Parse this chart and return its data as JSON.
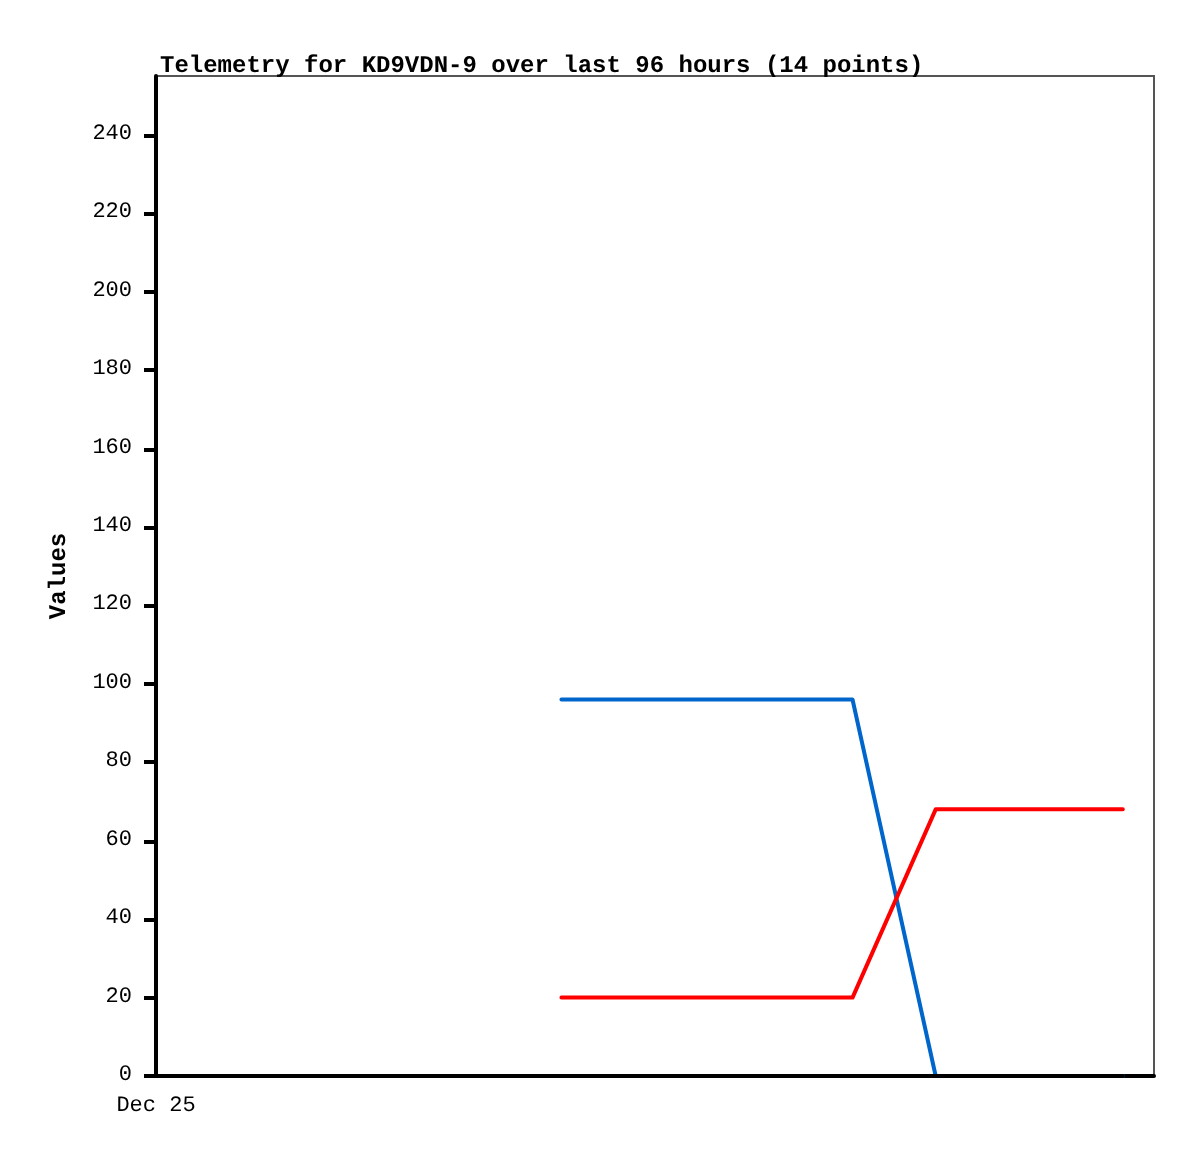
{
  "chart_data": {
    "type": "line",
    "title": "Telemetry for KD9VDN-9 over last 96 hours (14 points)",
    "ylabel": "Values",
    "categories": [
      "Dec 25",
      null,
      null,
      null,
      null,
      null,
      null,
      null,
      null,
      null,
      null,
      null,
      null,
      null,
      null,
      null,
      null,
      null,
      null,
      null,
      null,
      null,
      null,
      null,
      null,
      null,
      null,
      null,
      null,
      null,
      null,
      null,
      null,
      null,
      null,
      null,
      null,
      null,
      null,
      null,
      null,
      null,
      null,
      null,
      null,
      null,
      null,
      null,
      null,
      null,
      null,
      null,
      null,
      null,
      null,
      null,
      null,
      null,
      null,
      null,
      null,
      null,
      null,
      null,
      null,
      null,
      null,
      null,
      null,
      null,
      null,
      null,
      null,
      null,
      null,
      null,
      null,
      null,
      null,
      null,
      null,
      null,
      null,
      null,
      null,
      null,
      null,
      null,
      null,
      null,
      null,
      null,
      null,
      null,
      null,
      null,
      null
    ],
    "ylim": [
      0,
      255
    ],
    "yticks": [
      0,
      20,
      40,
      60,
      80,
      100,
      120,
      140,
      160,
      180,
      200,
      220,
      240
    ],
    "series": [
      {
        "color": "#0066cc",
        "values": [
          null,
          null,
          null,
          null,
          null,
          null,
          null,
          null,
          null,
          null,
          null,
          null,
          null,
          null,
          null,
          null,
          null,
          null,
          null,
          null,
          null,
          null,
          null,
          null,
          null,
          null,
          null,
          null,
          null,
          null,
          null,
          null,
          null,
          null,
          null,
          null,
          null,
          null,
          null,
          96,
          null,
          null,
          null,
          null,
          null,
          null,
          null,
          null,
          null,
          null,
          null,
          null,
          null,
          null,
          null,
          null,
          null,
          null,
          null,
          null,
          null,
          null,
          null,
          null,
          null,
          null,
          null,
          96,
          null,
          null,
          null,
          null,
          null,
          null,
          null,
          0,
          null,
          null,
          null,
          null,
          null,
          null,
          null,
          null,
          null,
          null,
          null,
          null,
          null,
          null,
          null,
          null,
          null,
          0,
          null,
          null,
          null
        ]
      },
      {
        "color": "#ff0000",
        "values": [
          null,
          null,
          null,
          null,
          null,
          null,
          null,
          null,
          null,
          null,
          null,
          null,
          null,
          null,
          null,
          null,
          null,
          null,
          null,
          null,
          null,
          null,
          null,
          null,
          null,
          null,
          null,
          null,
          null,
          null,
          null,
          null,
          null,
          null,
          null,
          null,
          null,
          null,
          null,
          20,
          null,
          null,
          null,
          null,
          null,
          null,
          null,
          null,
          null,
          null,
          null,
          null,
          null,
          null,
          null,
          null,
          null,
          null,
          null,
          null,
          null,
          null,
          null,
          null,
          null,
          null,
          null,
          20,
          null,
          null,
          null,
          null,
          null,
          null,
          null,
          68,
          null,
          null,
          null,
          null,
          null,
          null,
          null,
          null,
          null,
          null,
          null,
          null,
          null,
          null,
          null,
          null,
          null,
          68,
          null,
          null,
          null
        ]
      },
      {
        "color": "#000000",
        "values": [
          null,
          null,
          null,
          null,
          null,
          null,
          null,
          null,
          null,
          null,
          null,
          null,
          null,
          null,
          null,
          null,
          null,
          null,
          null,
          null,
          null,
          null,
          null,
          null,
          null,
          null,
          null,
          null,
          null,
          null,
          null,
          null,
          null,
          null,
          null,
          null,
          null,
          null,
          null,
          0,
          null,
          null,
          null,
          null,
          null,
          null,
          null,
          null,
          null,
          null,
          null,
          null,
          null,
          null,
          null,
          null,
          null,
          null,
          null,
          null,
          null,
          null,
          null,
          null,
          null,
          null,
          null,
          0,
          null,
          null,
          null,
          null,
          null,
          null,
          null,
          0,
          null,
          null,
          null,
          null,
          null,
          null,
          null,
          null,
          null,
          null,
          null,
          null,
          null,
          null,
          null,
          null,
          null,
          0,
          null,
          null,
          null
        ]
      }
    ],
    "grid": false,
    "marker": "none",
    "line_style": "solid"
  }
}
